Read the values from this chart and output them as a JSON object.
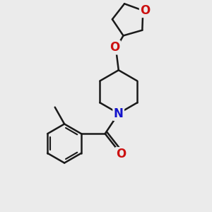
{
  "background_color": "#ebebeb",
  "bond_color": "#1a1a1a",
  "bond_width": 1.8,
  "N_color": "#1414cc",
  "O_color": "#cc1010",
  "font_size_atom": 11,
  "figsize": [
    3.0,
    3.0
  ],
  "dpi": 100,
  "xlim": [
    0,
    10
  ],
  "ylim": [
    0,
    10
  ]
}
